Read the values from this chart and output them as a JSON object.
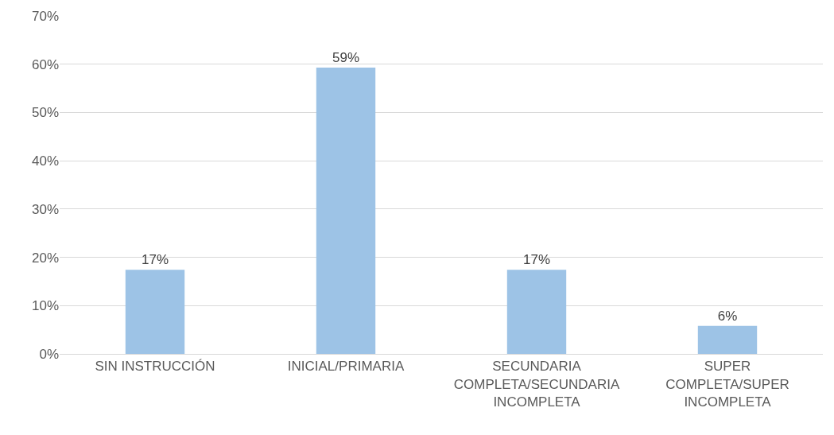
{
  "chart_data": {
    "type": "bar",
    "categories": [
      "SIN INSTRUCCIÓN",
      "INICIAL/PRIMARIA",
      "SECUNDARIA COMPLETA/SECUNDARIA INCOMPLETA",
      "SUPER COMPLETA/SUPER INCOMPLETA"
    ],
    "values": [
      17.4,
      59.3,
      17.4,
      5.8
    ],
    "value_labels": [
      "17%",
      "59%",
      "17%",
      "6%"
    ],
    "color": "#9dc3e6",
    "ylim": [
      0,
      70
    ],
    "yticks": [
      {
        "value": 0,
        "label": "0%"
      },
      {
        "value": 10,
        "label": "10%"
      },
      {
        "value": 20,
        "label": "20%"
      },
      {
        "value": 30,
        "label": "30%"
      },
      {
        "value": 40,
        "label": "40%"
      },
      {
        "value": 50,
        "label": "50%"
      },
      {
        "value": 60,
        "label": "60%"
      },
      {
        "value": 70,
        "label": "70%"
      }
    ],
    "grid": "y",
    "legend": false
  }
}
